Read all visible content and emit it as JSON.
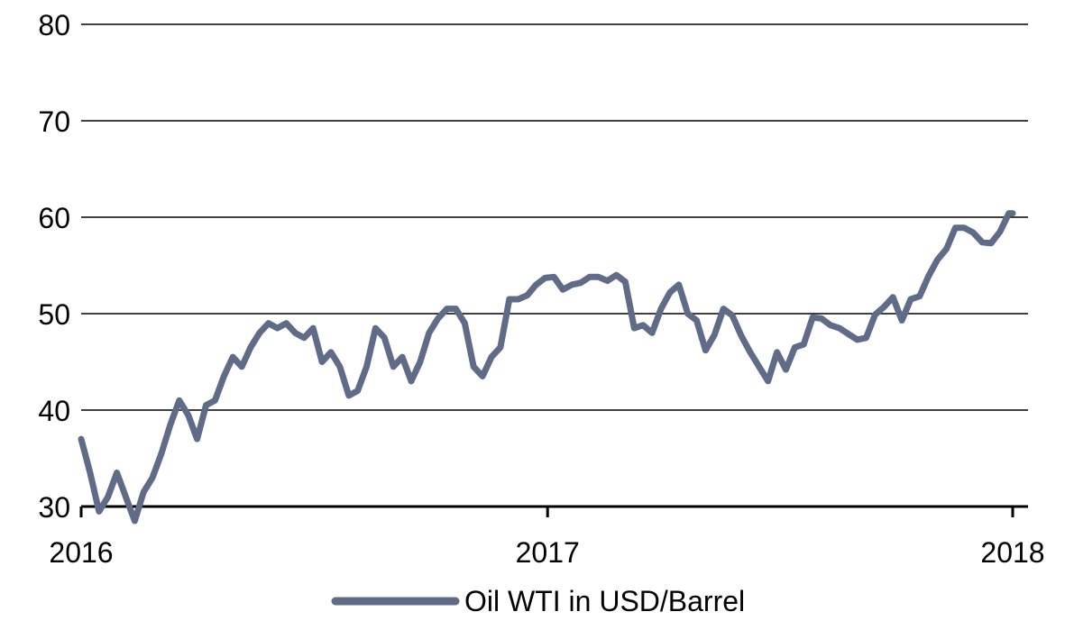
{
  "chart_data": {
    "type": "line",
    "title": "",
    "xlabel": "",
    "ylabel": "",
    "ylim": [
      30,
      80
    ],
    "yticks": [
      30,
      40,
      50,
      60,
      70,
      80
    ],
    "xlim": [
      "2016-01-01",
      "2018-01-01"
    ],
    "xticks": [
      "2016",
      "2017",
      "2018"
    ],
    "grid": "horizontal",
    "legend": "bottom",
    "colors": {
      "series": "#5f6b87",
      "grid": "#000000",
      "axis": "#000000"
    },
    "series": [
      {
        "name": "Oil WTI in USD/Barrel",
        "x": [
          "2016-01-01",
          "2016-01-08",
          "2016-01-15",
          "2016-01-22",
          "2016-01-29",
          "2016-02-05",
          "2016-02-12",
          "2016-02-19",
          "2016-02-26",
          "2016-03-04",
          "2016-03-11",
          "2016-03-18",
          "2016-03-25",
          "2016-04-01",
          "2016-04-08",
          "2016-04-15",
          "2016-04-22",
          "2016-04-29",
          "2016-05-06",
          "2016-05-13",
          "2016-05-20",
          "2016-05-27",
          "2016-06-03",
          "2016-06-10",
          "2016-06-17",
          "2016-06-24",
          "2016-07-01",
          "2016-07-08",
          "2016-07-15",
          "2016-07-22",
          "2016-07-29",
          "2016-08-05",
          "2016-08-12",
          "2016-08-19",
          "2016-08-26",
          "2016-09-02",
          "2016-09-09",
          "2016-09-16",
          "2016-09-23",
          "2016-09-30",
          "2016-10-07",
          "2016-10-14",
          "2016-10-21",
          "2016-10-28",
          "2016-11-04",
          "2016-11-11",
          "2016-11-18",
          "2016-11-25",
          "2016-12-02",
          "2016-12-09",
          "2016-12-16",
          "2016-12-23",
          "2016-12-30",
          "2017-01-06",
          "2017-01-13",
          "2017-01-20",
          "2017-01-27",
          "2017-02-03",
          "2017-02-10",
          "2017-02-17",
          "2017-02-24",
          "2017-03-03",
          "2017-03-10",
          "2017-03-17",
          "2017-03-24",
          "2017-03-31",
          "2017-04-07",
          "2017-04-14",
          "2017-04-21",
          "2017-04-28",
          "2017-05-05",
          "2017-05-12",
          "2017-05-19",
          "2017-05-26",
          "2017-06-02",
          "2017-06-09",
          "2017-06-16",
          "2017-06-23",
          "2017-06-30",
          "2017-07-07",
          "2017-07-14",
          "2017-07-21",
          "2017-07-28",
          "2017-08-04",
          "2017-08-11",
          "2017-08-18",
          "2017-08-25",
          "2017-09-01",
          "2017-09-08",
          "2017-09-15",
          "2017-09-22",
          "2017-09-29",
          "2017-10-06",
          "2017-10-13",
          "2017-10-20",
          "2017-10-27",
          "2017-11-03",
          "2017-11-10",
          "2017-11-17",
          "2017-11-24",
          "2017-12-01",
          "2017-12-08",
          "2017-12-15",
          "2017-12-22",
          "2017-12-29",
          "2018-01-01"
        ],
        "values": [
          37.0,
          33.5,
          29.5,
          31.0,
          33.5,
          31.0,
          28.5,
          31.5,
          33.0,
          35.5,
          38.5,
          41.0,
          39.5,
          37.0,
          40.5,
          41.0,
          43.5,
          45.5,
          44.5,
          46.5,
          48.0,
          49.0,
          48.5,
          49.0,
          48.0,
          47.5,
          48.5,
          45.0,
          46.0,
          44.5,
          41.5,
          42.0,
          44.5,
          48.5,
          47.5,
          44.5,
          45.5,
          43.0,
          45.0,
          48.0,
          49.5,
          50.5,
          50.5,
          49.0,
          44.5,
          43.5,
          45.5,
          46.5,
          51.5,
          51.5,
          51.9,
          53.0,
          53.7,
          53.8,
          52.5,
          53.0,
          53.2,
          53.8,
          53.8,
          53.4,
          54.0,
          53.3,
          48.5,
          48.8,
          48.0,
          50.5,
          52.2,
          53.0,
          50.0,
          49.3,
          46.2,
          47.8,
          50.5,
          49.8,
          47.7,
          46.0,
          44.5,
          43.0,
          46.0,
          44.2,
          46.5,
          46.8,
          49.6,
          49.5,
          48.8,
          48.5,
          47.9,
          47.3,
          47.5,
          49.9,
          50.7,
          51.7,
          49.3,
          51.5,
          51.8,
          53.9,
          55.6,
          56.7,
          58.9,
          58.9,
          58.4,
          57.4,
          57.3,
          58.5,
          60.4,
          60.4
        ]
      }
    ]
  }
}
